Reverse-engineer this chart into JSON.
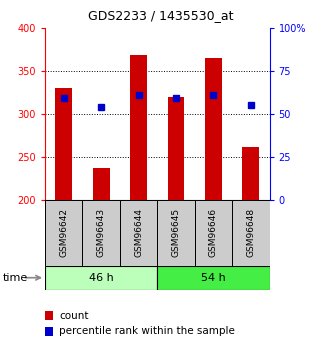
{
  "title": "GDS2233 / 1435530_at",
  "samples": [
    "GSM96642",
    "GSM96643",
    "GSM96644",
    "GSM96645",
    "GSM96646",
    "GSM96648"
  ],
  "count_values": [
    330,
    237,
    368,
    320,
    365,
    262
  ],
  "percentile_values": [
    318,
    308,
    322,
    318,
    322,
    310
  ],
  "bar_bottom": 200,
  "ylim_left": [
    200,
    400
  ],
  "ylim_right": [
    0,
    100
  ],
  "yticks_left": [
    200,
    250,
    300,
    350,
    400
  ],
  "yticks_right": [
    0,
    25,
    50,
    75,
    100
  ],
  "bar_color": "#cc0000",
  "percentile_color": "#0000cc",
  "group1_label": "46 h",
  "group2_label": "54 h",
  "group1_bg": "#bbffbb",
  "group2_bg": "#44ee44",
  "sample_bg": "#cccccc",
  "legend_count": "count",
  "legend_percentile": "percentile rank within the sample",
  "bar_width": 0.45,
  "percentile_marker_size": 5,
  "grid_yticks": [
    250,
    300,
    350
  ],
  "time_label": "time"
}
